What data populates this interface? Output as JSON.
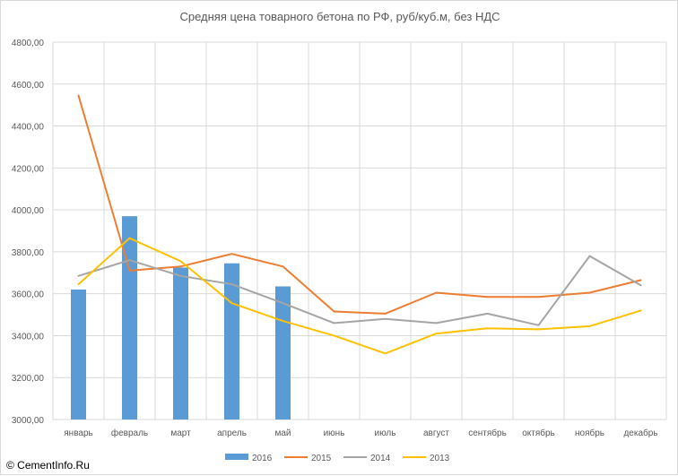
{
  "chart_data": {
    "type": "bar",
    "title": "Средняя цена товарного бетона по РФ, руб/куб.м, без НДС",
    "xlabel": "",
    "ylabel": "",
    "ylim": [
      3000,
      4800
    ],
    "y_step": 200,
    "y_tick_labels": [
      "3000,00",
      "3200,00",
      "3400,00",
      "3600,00",
      "3800,00",
      "4000,00",
      "4200,00",
      "4400,00",
      "4600,00",
      "4800,00"
    ],
    "categories": [
      "январь",
      "февраль",
      "март",
      "апрель",
      "май",
      "июнь",
      "июль",
      "август",
      "сентябрь",
      "октябрь",
      "ноябрь",
      "декабрь"
    ],
    "grid": true,
    "legend_position": "bottom",
    "series": [
      {
        "name": "2016",
        "kind": "bar",
        "color": "#5b9bd5",
        "values": [
          3620,
          3970,
          3725,
          3745,
          3635,
          null,
          null,
          null,
          null,
          null,
          null,
          null
        ]
      },
      {
        "name": "2015",
        "kind": "line",
        "color": "#ed7d31",
        "values": [
          4545,
          3710,
          3730,
          3790,
          3730,
          3515,
          3505,
          3605,
          3585,
          3585,
          3605,
          3665
        ]
      },
      {
        "name": "2014",
        "kind": "line",
        "color": "#a5a5a5",
        "values": [
          3685,
          3760,
          3685,
          3645,
          3555,
          3460,
          3480,
          3460,
          3505,
          3450,
          3780,
          3640
        ]
      },
      {
        "name": "2013",
        "kind": "line",
        "color": "#ffc000",
        "values": [
          3645,
          3865,
          3755,
          3555,
          3470,
          3400,
          3315,
          3410,
          3435,
          3430,
          3445,
          3520
        ]
      }
    ]
  },
  "watermark": "© CementInfo.Ru"
}
